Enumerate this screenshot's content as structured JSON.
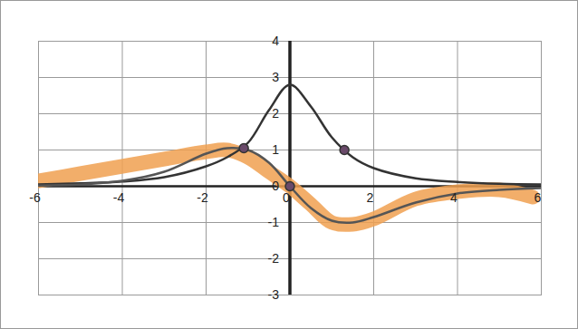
{
  "chart_data": {
    "type": "line",
    "xlim": [
      -6,
      6
    ],
    "xticks": [
      -6,
      -4,
      -2,
      0,
      2,
      4,
      6
    ],
    "ylim": [
      -3,
      4
    ],
    "yticks": [
      -3,
      -2,
      -1,
      0,
      1,
      2,
      3,
      4
    ],
    "grid": true,
    "series": [
      {
        "type": "line",
        "line_style": "highlighter",
        "color": "#f0a050",
        "x": [
          -6,
          -5,
          -4,
          -3,
          -2,
          -1.5,
          -1,
          -0.5,
          0,
          0.5,
          1,
          1.5,
          2,
          3,
          4,
          5,
          5.8
        ],
        "values": [
          0.15,
          0.35,
          0.55,
          0.75,
          0.95,
          1.0,
          0.8,
          0.4,
          0,
          -0.5,
          -1.0,
          -1.05,
          -0.9,
          -0.35,
          -0.15,
          -0.1,
          -0.3
        ]
      },
      {
        "type": "line",
        "line_style": "solid",
        "color": "#333333",
        "x": [
          -6,
          -5,
          -4,
          -3,
          -2,
          -1.5,
          -1,
          -0.5,
          0,
          0.5,
          1,
          1.5,
          2,
          3,
          4,
          5,
          6
        ],
        "values": [
          0.05,
          0.08,
          0.13,
          0.25,
          0.55,
          0.8,
          1.2,
          2.1,
          2.8,
          2.2,
          1.35,
          0.8,
          0.5,
          0.22,
          0.12,
          0.07,
          0.05
        ]
      },
      {
        "type": "line",
        "line_style": "solid",
        "color": "#555555",
        "x": [
          -6,
          -5,
          -4,
          -3,
          -2,
          -1.5,
          -1,
          -0.5,
          0,
          0.5,
          1,
          1.5,
          2,
          3,
          4,
          5,
          6
        ],
        "values": [
          0.02,
          0.05,
          0.15,
          0.4,
          0.9,
          1.05,
          1.0,
          0.65,
          0,
          -0.6,
          -0.95,
          -1.0,
          -0.85,
          -0.45,
          -0.2,
          -0.1,
          -0.05
        ]
      },
      {
        "type": "scatter",
        "marker": "circle",
        "color": "#6a4a6a",
        "x": [
          -1.1,
          0,
          1.3
        ],
        "values": [
          1.05,
          0,
          1.0
        ]
      }
    ]
  }
}
